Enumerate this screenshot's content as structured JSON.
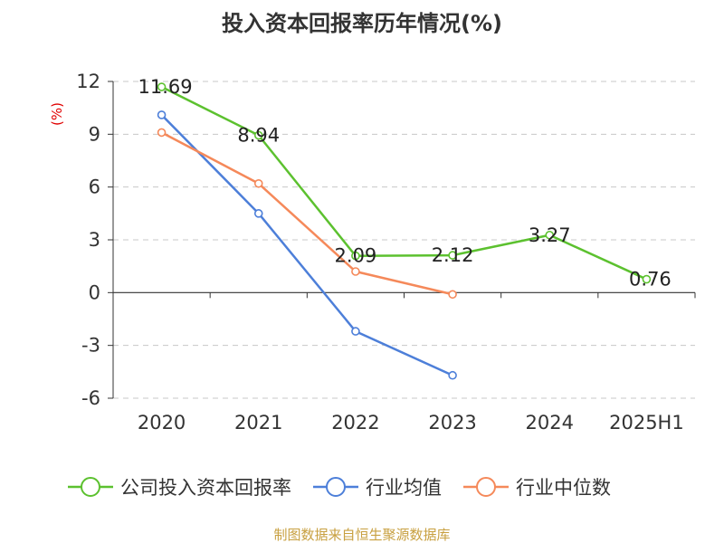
{
  "chart_data": {
    "type": "line",
    "title": "投入资本回报率历年情况(%)",
    "ylabel": "(%)",
    "categories": [
      "2020",
      "2021",
      "2022",
      "2023",
      "2024",
      "2025H1"
    ],
    "ylim": [
      -6,
      12
    ],
    "yticks": [
      12,
      9,
      6,
      3,
      0,
      -3,
      -6
    ],
    "grid": true,
    "legend_position": "bottom",
    "series": [
      {
        "name": "公司投入资本回报率",
        "color": "#5cc12f",
        "values": [
          11.69,
          8.94,
          2.09,
          2.12,
          3.27,
          0.76
        ],
        "labels": [
          "11.69",
          "8.94",
          "2.09",
          "2.12",
          "3.27",
          "0.76"
        ]
      },
      {
        "name": "行业均值",
        "color": "#4d7fd9",
        "values": [
          10.1,
          4.5,
          -2.2,
          -4.7,
          null,
          null
        ]
      },
      {
        "name": "行业中位数",
        "color": "#f5895a",
        "values": [
          9.1,
          6.2,
          1.2,
          -0.1,
          null,
          null
        ]
      }
    ]
  },
  "source": "制图数据来自恒生聚源数据库"
}
